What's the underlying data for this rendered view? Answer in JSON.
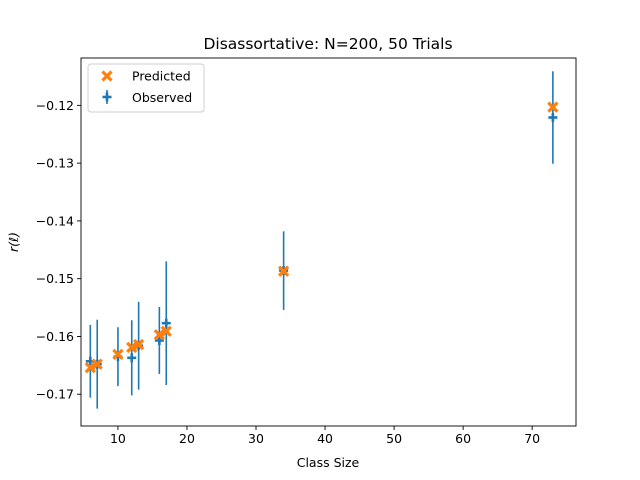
{
  "chart_data": {
    "type": "scatter",
    "title": "Disassortative: N=200, 50 Trials",
    "xlabel": "Class Size",
    "ylabel": "r(ℓ)",
    "xlim": [
      4.65,
      76.35
    ],
    "ylim": [
      -0.1755,
      -0.1118
    ],
    "x_ticks": [
      10,
      20,
      30,
      40,
      50,
      60,
      70
    ],
    "y_ticks": [
      -0.17,
      -0.16,
      -0.15,
      -0.14,
      -0.13,
      -0.12
    ],
    "y_tick_labels": [
      "−0.17",
      "−0.16",
      "−0.15",
      "−0.14",
      "−0.13",
      "−0.12"
    ],
    "grid": false,
    "legend_position": "top-left",
    "colors": {
      "predicted": "#ff7f0e",
      "observed": "#1f77b4"
    },
    "series": [
      {
        "name": "Predicted",
        "marker": "x-filled",
        "points": [
          {
            "x": 6,
            "y": -0.1654
          },
          {
            "x": 7,
            "y": -0.1648
          },
          {
            "x": 10,
            "y": -0.1631
          },
          {
            "x": 12,
            "y": -0.1619
          },
          {
            "x": 13,
            "y": -0.1614
          },
          {
            "x": 16,
            "y": -0.1597
          },
          {
            "x": 17,
            "y": -0.1591
          },
          {
            "x": 34,
            "y": -0.1487
          },
          {
            "x": 73,
            "y": -0.1203
          }
        ]
      },
      {
        "name": "Observed",
        "marker": "plus-with-errorbar",
        "points": [
          {
            "x": 6,
            "y": -0.1643,
            "err": 0.0063
          },
          {
            "x": 7,
            "y": -0.1648,
            "err": 0.0077
          },
          {
            "x": 10,
            "y": -0.1635,
            "err": 0.0051
          },
          {
            "x": 12,
            "y": -0.1637,
            "err": 0.0065
          },
          {
            "x": 13,
            "y": -0.1616,
            "err": 0.0076
          },
          {
            "x": 16,
            "y": -0.1607,
            "err": 0.0058
          },
          {
            "x": 17,
            "y": -0.1577,
            "err": 0.0107
          },
          {
            "x": 34,
            "y": -0.1486,
            "err": 0.0068
          },
          {
            "x": 73,
            "y": -0.1221,
            "err": 0.008
          }
        ]
      }
    ]
  }
}
